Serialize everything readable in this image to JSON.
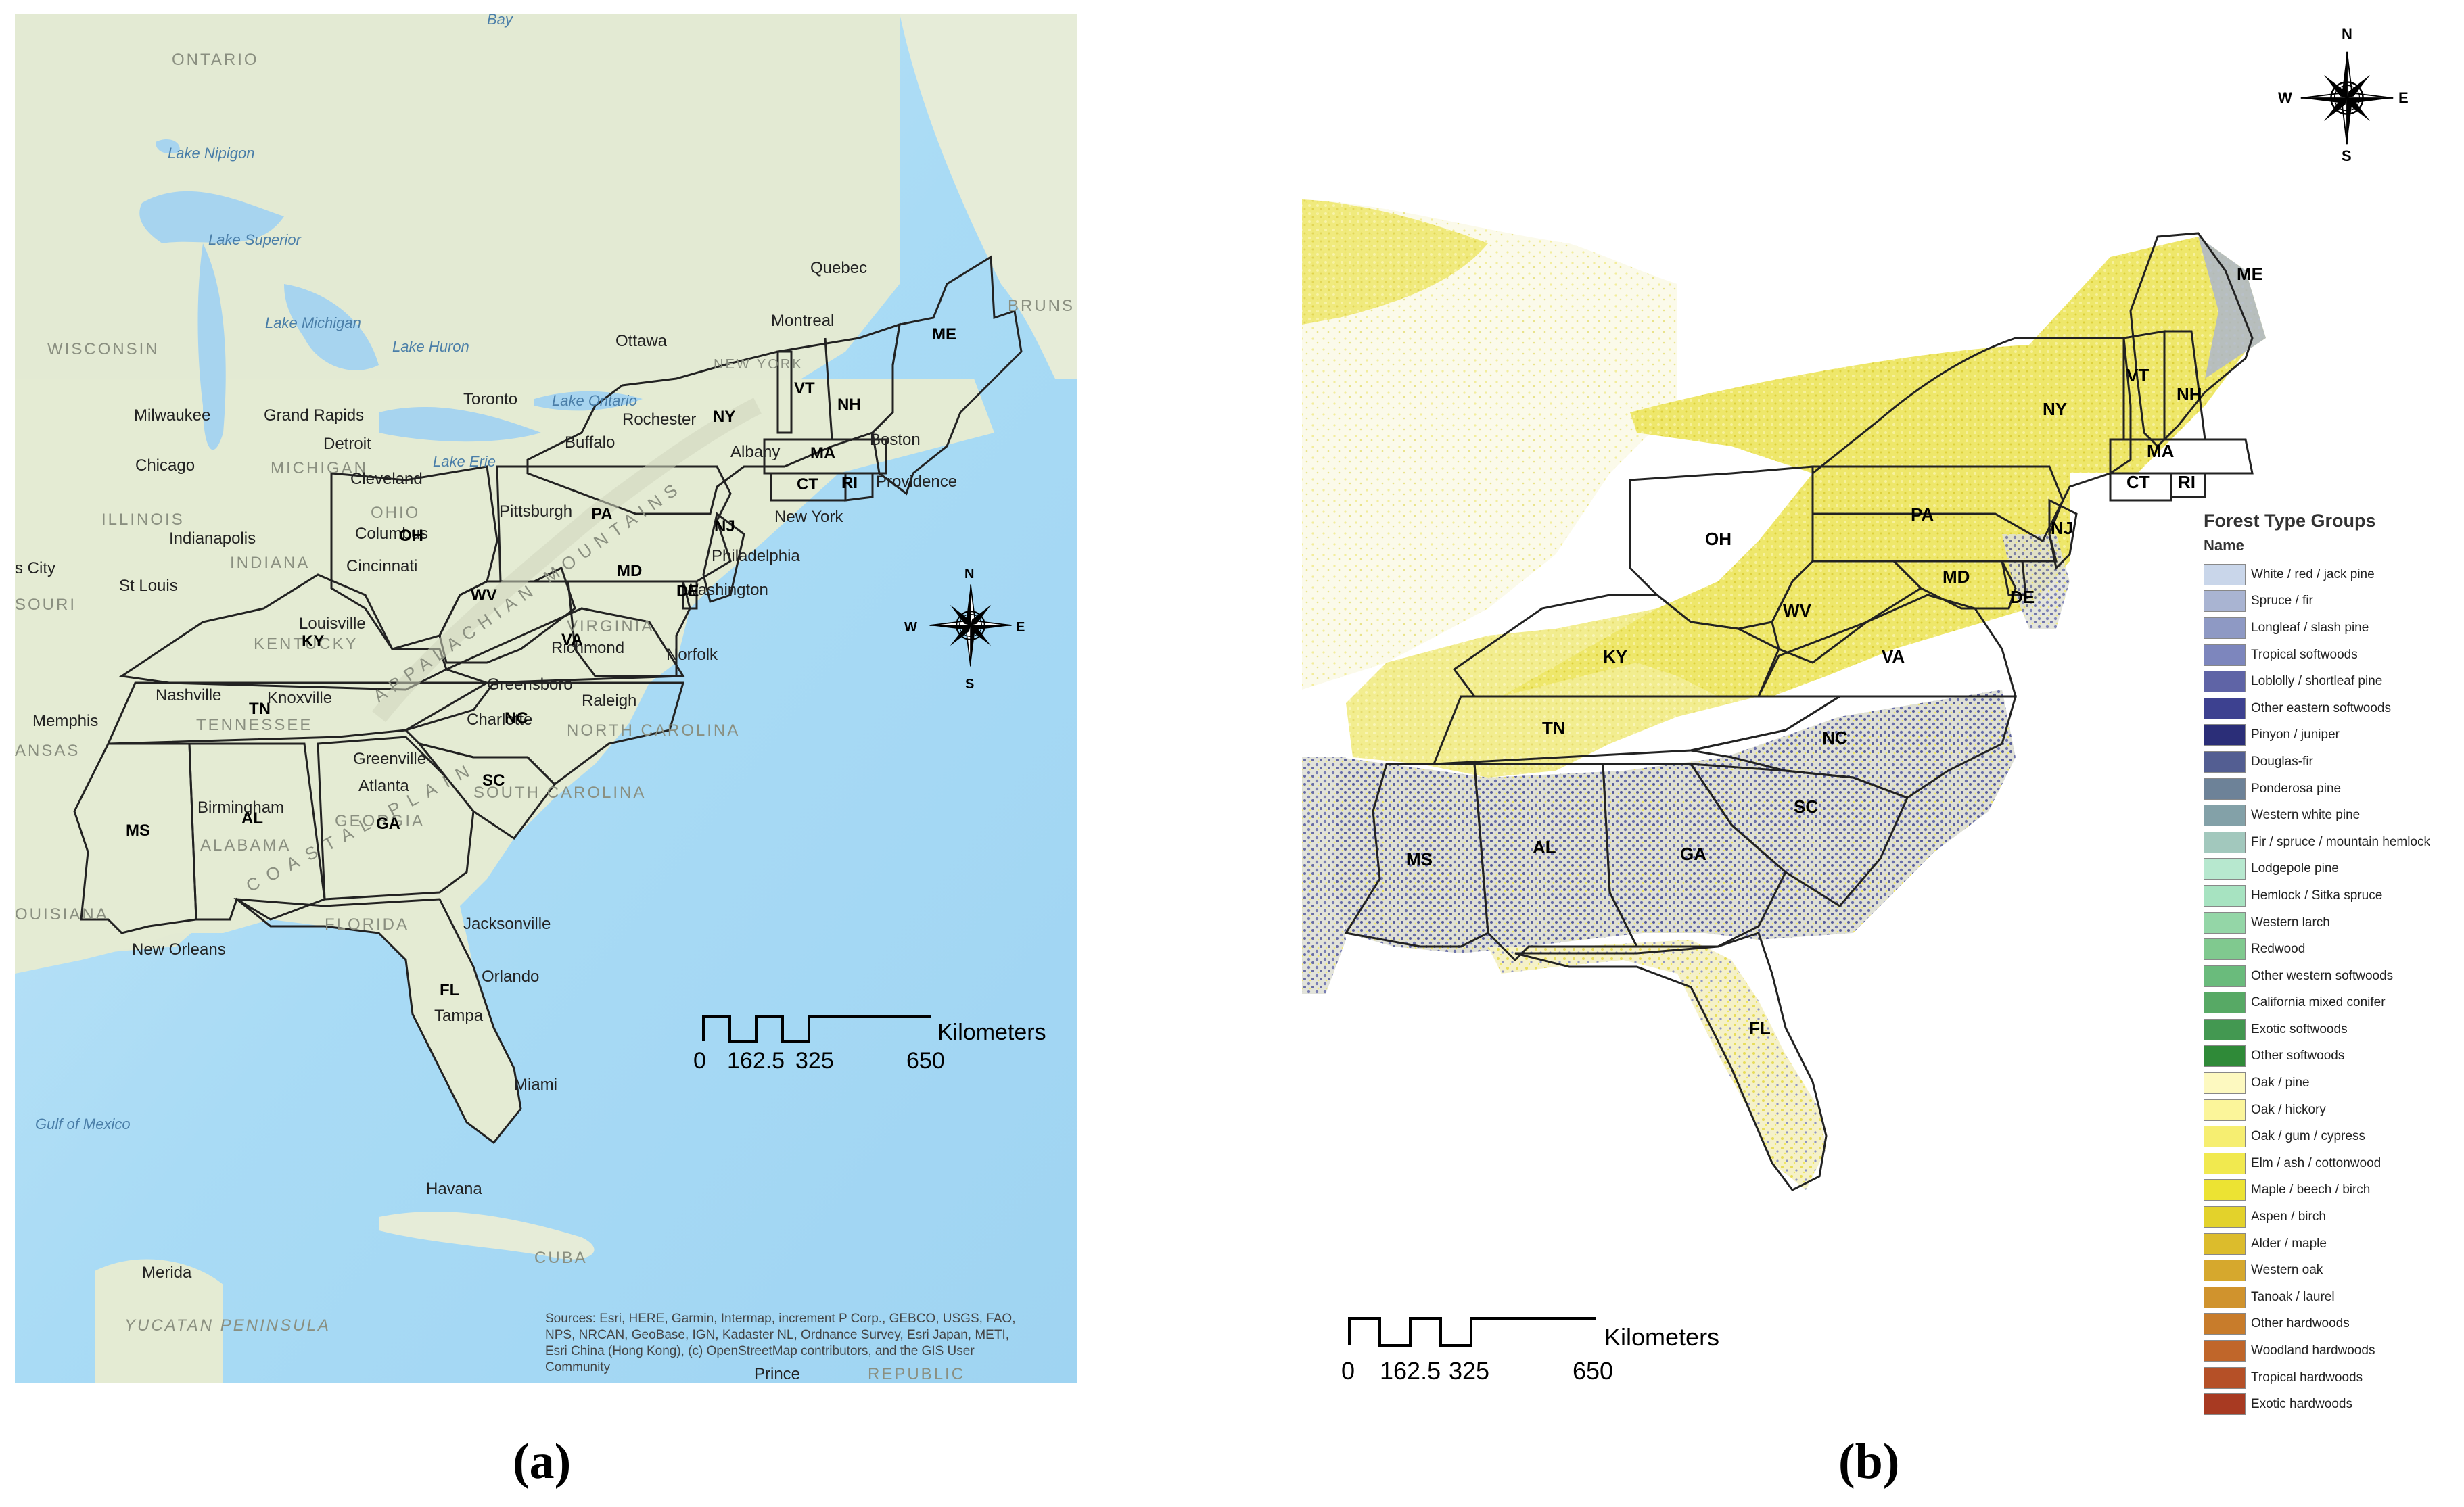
{
  "panel_a": {
    "caption": "(a)",
    "water_labels": [
      "Bay",
      "Lake Nipigon",
      "Lake Superior",
      "Lake Michigan",
      "Lake Huron",
      "Lake Ontario",
      "Lake Erie",
      "Gulf of Mexico"
    ],
    "region_labels": [
      "ONTARIO",
      "WISCONSIN",
      "MICHIGAN",
      "OHIO",
      "ILLINOIS",
      "INDIANA",
      "SOURI",
      "KENTUCKY",
      "TENNESSEE",
      "ALABAMA",
      "GEORGIA",
      "FLORIDA",
      "NEW YORK",
      "VIRGINIA",
      "NORTH CAROLINA",
      "SOUTH CAROLINA",
      "OUISIANA",
      "ANSAS",
      "BRUNS",
      "CUBA",
      "YUCATAN PENINSULA",
      "REPUBLIC",
      "APPALACHIAN MOUNTAINS",
      "COASTAL PLAIN"
    ],
    "city_labels": [
      "Quebec",
      "Montreal",
      "Ottawa",
      "Toronto",
      "Rochester",
      "Buffalo",
      "Albany",
      "Boston",
      "Providence",
      "New York",
      "Philadelphia",
      "Pittsburgh",
      "Cleveland",
      "Columbus",
      "Cincinnati",
      "Detroit",
      "Grand Rapids",
      "Milwaukee",
      "Chicago",
      "Indianapolis",
      "St Louis",
      "Louisville",
      "Nashville",
      "Knoxville",
      "Memphis",
      "Greensboro",
      "Raleigh",
      "Richmond",
      "Norfolk",
      "Washington",
      "Charlotte",
      "Greenville",
      "Atlanta",
      "Birmingham",
      "Jacksonville",
      "Orlando",
      "Tampa",
      "Miami",
      "New Orleans",
      "Havana",
      "Merida",
      "Prince",
      "s City"
    ],
    "state_labels": [
      "ME",
      "VT",
      "NH",
      "NY",
      "MA",
      "CT",
      "RI",
      "PA",
      "NJ",
      "OH",
      "MD",
      "DE",
      "WV",
      "VA",
      "KY",
      "TN",
      "NC",
      "SC",
      "GA",
      "AL",
      "MS",
      "FL"
    ],
    "attribution": [
      "Sources: Esri, HERE, Garmin, Intermap, increment P Corp., GEBCO, USGS, FAO,",
      "NPS, NRCAN, GeoBase, IGN, Kadaster NL, Ordnance Survey, Esri Japan, METI,",
      "Esri China (Hong Kong), (c) OpenStreetMap contributors, and the GIS User",
      "Community"
    ]
  },
  "panel_b": {
    "caption": "(b)",
    "state_labels": [
      "ME",
      "VT",
      "NH",
      "NY",
      "MA",
      "CT",
      "RI",
      "PA",
      "NJ",
      "OH",
      "MD",
      "DE",
      "WV",
      "VA",
      "KY",
      "TN",
      "NC",
      "SC",
      "GA",
      "AL",
      "MS",
      "FL"
    ]
  },
  "compass": {
    "n": "N",
    "s": "S",
    "e": "E",
    "w": "W"
  },
  "scale_bar": {
    "unit": "Kilometers",
    "ticks": [
      "0",
      "162.5",
      "325",
      "650"
    ]
  },
  "legend": {
    "title": "Forest Type Groups",
    "subtitle": "Name",
    "items": [
      {
        "label": "White / red / jack pine",
        "color": "#c9d6ea"
      },
      {
        "label": "Spruce / fir",
        "color": "#a9b4d2"
      },
      {
        "label": "Longleaf / slash pine",
        "color": "#8e99c4"
      },
      {
        "label": "Tropical softwoods",
        "color": "#7d86bd"
      },
      {
        "label": "Loblolly / shortleaf pine",
        "color": "#5f64a6"
      },
      {
        "label": "Other eastern softwoods",
        "color": "#3d4190"
      },
      {
        "label": "Pinyon / juniper",
        "color": "#2b2e78"
      },
      {
        "label": "Douglas-fir",
        "color": "#535e92"
      },
      {
        "label": "Ponderosa pine",
        "color": "#6d8298"
      },
      {
        "label": "Western white pine",
        "color": "#83a1a8"
      },
      {
        "label": "Fir / spruce / mountain hemlock",
        "color": "#a2c8bd"
      },
      {
        "label": "Lodgepole pine",
        "color": "#b7e8cf"
      },
      {
        "label": "Hemlock / Sitka spruce",
        "color": "#a7e3c1"
      },
      {
        "label": "Western larch",
        "color": "#94d6a7"
      },
      {
        "label": "Redwood",
        "color": "#80c98f"
      },
      {
        "label": "Other western softwoods",
        "color": "#6abb7c"
      },
      {
        "label": "California mixed conifer",
        "color": "#57a965"
      },
      {
        "label": "Exotic softwoods",
        "color": "#439851"
      },
      {
        "label": "Other softwoods",
        "color": "#2f8a38"
      },
      {
        "label": "Oak / pine",
        "color": "#fdf9c0"
      },
      {
        "label": "Oak / hickory",
        "color": "#fbf59a"
      },
      {
        "label": "Oak / gum / cypress",
        "color": "#f6ee71"
      },
      {
        "label": "Elm / ash / cottonwood",
        "color": "#f1e94f"
      },
      {
        "label": "Maple / beech / birch",
        "color": "#ece333"
      },
      {
        "label": "Aspen / birch",
        "color": "#e3d22b"
      },
      {
        "label": "Alder / maple",
        "color": "#dcbc2c"
      },
      {
        "label": "Western oak",
        "color": "#d6a82d"
      },
      {
        "label": "Tanoak / laurel",
        "color": "#d0932d"
      },
      {
        "label": "Other hardwoods",
        "color": "#c87c2b"
      },
      {
        "label": "Woodland hardwoods",
        "color": "#c0662a"
      },
      {
        "label": "Tropical hardwoods",
        "color": "#b55027"
      },
      {
        "label": "Exotic hardwoods",
        "color": "#a83a22"
      }
    ]
  }
}
